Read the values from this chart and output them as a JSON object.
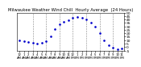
{
  "title": "Milwaukee Weather Wind Chill  Hourly Average  (24 Hours)",
  "title_fontsize": 3.8,
  "hours": [
    0,
    1,
    2,
    3,
    4,
    5,
    6,
    7,
    8,
    9,
    10,
    11,
    12,
    13,
    14,
    15,
    16,
    17,
    18,
    19,
    20,
    21,
    22,
    23
  ],
  "wind_chill": [
    10,
    8,
    7,
    6,
    5,
    6,
    8,
    16,
    26,
    33,
    37,
    39,
    42,
    44,
    43,
    40,
    35,
    30,
    20,
    10,
    3,
    -1,
    -3,
    -2
  ],
  "line_color": "#0000cc",
  "marker": ".",
  "marker_size": 1.8,
  "background_color": "#ffffff",
  "grid_color": "#888888",
  "ylim": [
    -5,
    50
  ],
  "ytick_values": [
    -5,
    0,
    5,
    10,
    15,
    20,
    25,
    30,
    35,
    40,
    45,
    50
  ],
  "ytick_fontsize": 3.2,
  "xtick_fontsize": 2.8,
  "vgrid_hours": [
    3,
    6,
    9,
    12,
    15,
    18,
    21
  ],
  "xtick_hours": [
    0,
    1,
    2,
    3,
    4,
    5,
    6,
    7,
    8,
    9,
    10,
    11,
    12,
    13,
    14,
    15,
    16,
    17,
    18,
    19,
    20,
    21,
    22,
    23
  ]
}
